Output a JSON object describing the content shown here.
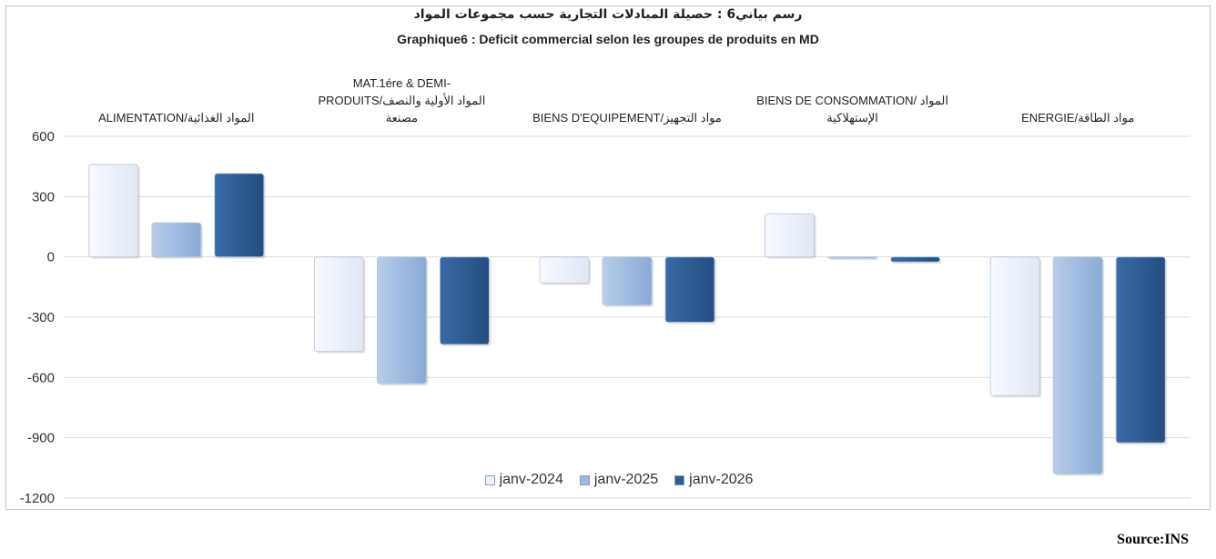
{
  "chart_data": {
    "type": "bar",
    "title_ar": "رسم بياني6 : حصيلة المبادلات التجارية حسب مجموعات المواد",
    "title": "Graphique6 : Deficit commercial selon les groupes de produits en MD",
    "categories": [
      "ALIMENTATION/المواد الغذائية",
      "MAT.1ére & DEMI-PRODUITS/المواد الأولية والنصف مصنعة",
      "BIENS D'EQUIPEMENT/مواد التجهيز",
      "BIENS DE CONSOMMATION/ المواد الإستهلاكية",
      "ENERGIE/مواد الطاقة"
    ],
    "category_lines": [
      [
        "ALIMENTATION/المواد الغذائية"
      ],
      [
        "MAT.1ére & DEMI-",
        "PRODUITS/المواد الأولية والنصف",
        "مصنعة"
      ],
      [
        "BIENS D'EQUIPEMENT/مواد التجهيز"
      ],
      [
        "BIENS DE CONSOMMATION/ المواد",
        "الإستهلاكية"
      ],
      [
        "ENERGIE/مواد الطاقة"
      ]
    ],
    "series": [
      {
        "name": "janv-2024",
        "color": "#eef3fa",
        "values": [
          460,
          -470,
          -130,
          215,
          -690
        ]
      },
      {
        "name": "janv-2025",
        "color": "#9db9df",
        "values": [
          170,
          -630,
          -240,
          -5,
          -1080
        ]
      },
      {
        "name": "janv-2026",
        "color": "#2f5d95",
        "values": [
          415,
          -435,
          -325,
          -25,
          -925
        ]
      }
    ],
    "yticks": [
      600,
      300,
      0,
      -300,
      -600,
      -900,
      -1200
    ],
    "ylim": [
      -1200,
      600
    ],
    "grid": true,
    "legend_position": "bottom-center"
  },
  "source": "Source:INS"
}
